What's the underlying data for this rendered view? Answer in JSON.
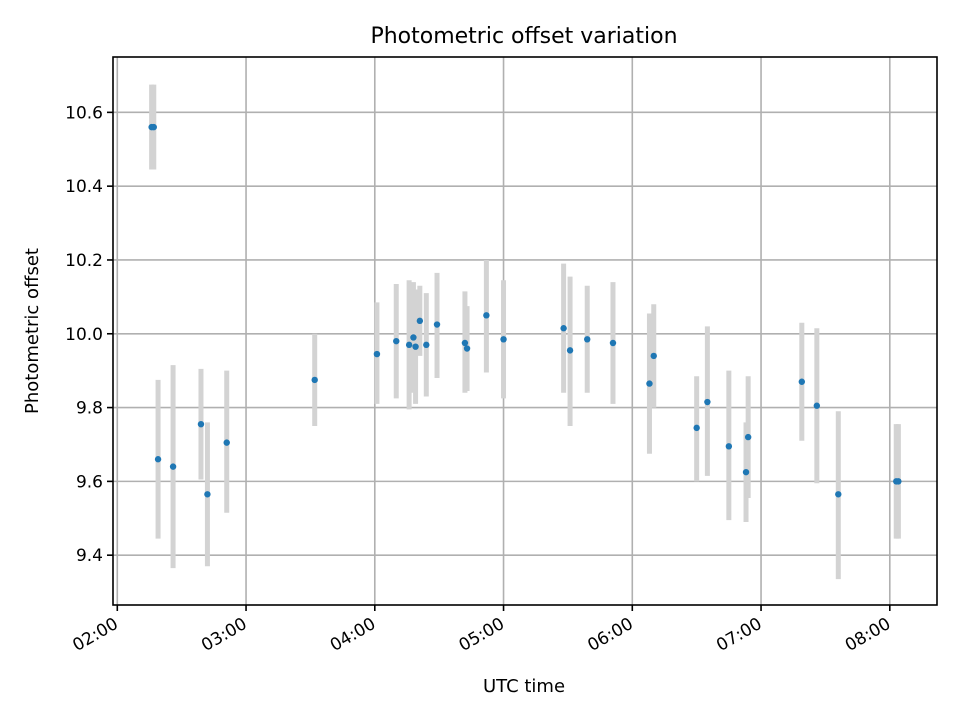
{
  "chart_data": {
    "type": "scatter",
    "title": "Photometric offset variation",
    "xlabel": "UTC time",
    "ylabel": "Photometric offset",
    "x_unit": "UTC time (HH:MM)",
    "xlim": [
      "01:58",
      "08:22"
    ],
    "ylim": [
      9.265,
      10.75
    ],
    "x_ticks": [
      "02:00",
      "03:00",
      "04:00",
      "05:00",
      "06:00",
      "07:00",
      "08:00"
    ],
    "y_ticks": [
      "9.4",
      "9.6",
      "9.8",
      "10.0",
      "10.2",
      "10.4",
      "10.6"
    ],
    "grid": true,
    "colors": {
      "point": "#1f77b4",
      "errorbar": "#d3d3d3",
      "grid": "#b0b0b0",
      "axes": "#000000"
    },
    "series": [
      {
        "points": [
          {
            "x": "02:16",
            "y": 10.56,
            "ylow": 10.445,
            "yhigh": 10.675
          },
          {
            "x": "02:17",
            "y": 10.56,
            "ylow": 10.445,
            "yhigh": 10.675
          },
          {
            "x": "02:19",
            "y": 9.66,
            "ylow": 9.445,
            "yhigh": 9.875
          },
          {
            "x": "02:26",
            "y": 9.64,
            "ylow": 9.365,
            "yhigh": 9.915
          },
          {
            "x": "02:39",
            "y": 9.755,
            "ylow": 9.605,
            "yhigh": 9.905
          },
          {
            "x": "02:42",
            "y": 9.565,
            "ylow": 9.37,
            "yhigh": 9.76
          },
          {
            "x": "02:51",
            "y": 9.705,
            "ylow": 9.515,
            "yhigh": 9.9
          },
          {
            "x": "03:32",
            "y": 9.875,
            "ylow": 9.75,
            "yhigh": 10.0
          },
          {
            "x": "04:01",
            "y": 9.945,
            "ylow": 9.81,
            "yhigh": 10.085
          },
          {
            "x": "04:10",
            "y": 9.98,
            "ylow": 9.825,
            "yhigh": 10.135
          },
          {
            "x": "04:16",
            "y": 9.97,
            "ylow": 9.795,
            "yhigh": 10.145
          },
          {
            "x": "04:18",
            "y": 9.99,
            "ylow": 9.84,
            "yhigh": 10.14
          },
          {
            "x": "04:19",
            "y": 9.965,
            "ylow": 9.81,
            "yhigh": 10.12
          },
          {
            "x": "04:21",
            "y": 10.035,
            "ylow": 9.94,
            "yhigh": 10.13
          },
          {
            "x": "04:24",
            "y": 9.97,
            "ylow": 9.83,
            "yhigh": 10.11
          },
          {
            "x": "04:29",
            "y": 10.025,
            "ylow": 9.88,
            "yhigh": 10.165
          },
          {
            "x": "04:42",
            "y": 9.975,
            "ylow": 9.84,
            "yhigh": 10.115
          },
          {
            "x": "04:43",
            "y": 9.96,
            "ylow": 9.845,
            "yhigh": 10.075
          },
          {
            "x": "04:52",
            "y": 10.05,
            "ylow": 9.895,
            "yhigh": 10.2
          },
          {
            "x": "05:00",
            "y": 9.985,
            "ylow": 9.825,
            "yhigh": 10.145
          },
          {
            "x": "05:28",
            "y": 10.015,
            "ylow": 9.84,
            "yhigh": 10.19
          },
          {
            "x": "05:31",
            "y": 9.955,
            "ylow": 9.75,
            "yhigh": 10.155
          },
          {
            "x": "05:39",
            "y": 9.985,
            "ylow": 9.84,
            "yhigh": 10.13
          },
          {
            "x": "05:51",
            "y": 9.975,
            "ylow": 9.81,
            "yhigh": 10.14
          },
          {
            "x": "06:08",
            "y": 9.865,
            "ylow": 9.675,
            "yhigh": 10.055
          },
          {
            "x": "06:10",
            "y": 9.94,
            "ylow": 9.8,
            "yhigh": 10.08
          },
          {
            "x": "06:30",
            "y": 9.745,
            "ylow": 9.6,
            "yhigh": 9.885
          },
          {
            "x": "06:35",
            "y": 9.815,
            "ylow": 9.615,
            "yhigh": 10.02
          },
          {
            "x": "06:45",
            "y": 9.695,
            "ylow": 9.495,
            "yhigh": 9.9
          },
          {
            "x": "06:53",
            "y": 9.625,
            "ylow": 9.49,
            "yhigh": 9.76
          },
          {
            "x": "06:54",
            "y": 9.72,
            "ylow": 9.555,
            "yhigh": 9.885
          },
          {
            "x": "07:19",
            "y": 9.87,
            "ylow": 9.71,
            "yhigh": 10.03
          },
          {
            "x": "07:26",
            "y": 9.805,
            "ylow": 9.595,
            "yhigh": 10.015
          },
          {
            "x": "07:36",
            "y": 9.565,
            "ylow": 9.335,
            "yhigh": 9.79
          },
          {
            "x": "08:03",
            "y": 9.6,
            "ylow": 9.445,
            "yhigh": 9.755
          },
          {
            "x": "08:04",
            "y": 9.6,
            "ylow": 9.445,
            "yhigh": 9.755
          }
        ]
      }
    ]
  }
}
